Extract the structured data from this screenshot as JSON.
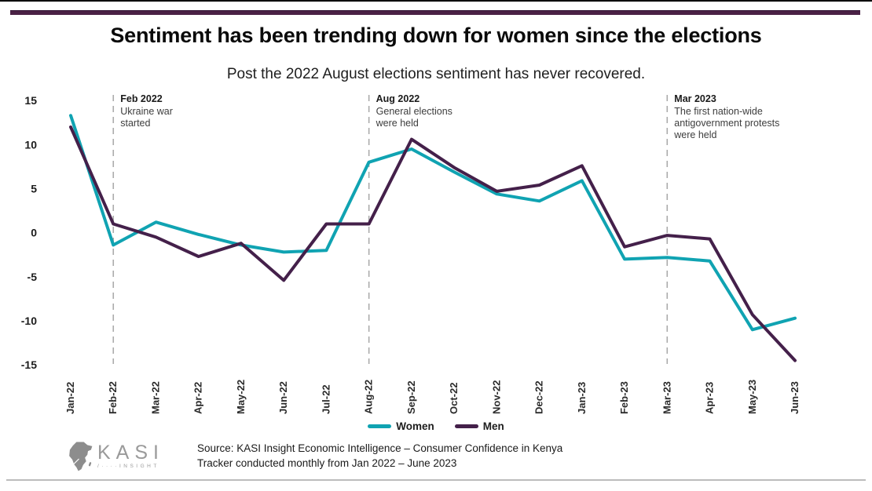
{
  "page": {
    "title": "Sentiment has been trending down for women since the elections",
    "subtitle": "Post the 2022 August elections sentiment has never recovered."
  },
  "chart_data": {
    "type": "line",
    "categories": [
      "Jan-22",
      "Feb-22",
      "Mar-22",
      "Apr-22",
      "May-22",
      "Jun-22",
      "Jul-22",
      "Aug-22",
      "Sep-22",
      "Oct-22",
      "Nov-22",
      "Dec-22",
      "Jan-23",
      "Feb-23",
      "Mar-23",
      "Apr-23",
      "May-23",
      "Jun-23"
    ],
    "series": [
      {
        "name": "Women",
        "color": "#10a3b2",
        "values": [
          13.3,
          -1.4,
          1.2,
          -0.2,
          -1.4,
          -2.2,
          -2.0,
          8.0,
          9.5,
          6.9,
          4.4,
          3.6,
          5.9,
          -3.0,
          -2.8,
          -3.2,
          -11.0,
          -9.7
        ]
      },
      {
        "name": "Men",
        "color": "#44204a",
        "values": [
          12.0,
          1.0,
          -0.5,
          -2.7,
          -1.2,
          -5.4,
          1.0,
          1.0,
          10.6,
          7.4,
          4.7,
          5.4,
          7.6,
          -1.6,
          -0.3,
          -0.7,
          -9.3,
          -14.5
        ]
      }
    ],
    "ylabel": "",
    "xlabel": "",
    "ylim": [
      -15,
      15
    ],
    "yticks": [
      15,
      10,
      5,
      0,
      -5,
      -10,
      -15
    ],
    "grid": false,
    "legend_position": "bottom-center",
    "annotations": [
      {
        "month": "Feb-22",
        "title": "Feb 2022",
        "text": "Ukraine war\nstarted"
      },
      {
        "month": "Aug-22",
        "title": "Aug 2022",
        "text": "General elections\nwere held"
      },
      {
        "month": "Mar-23",
        "title": "Mar 2023",
        "text": "The first nation-wide\nantigovernment protests\nwere held"
      }
    ]
  },
  "footer": {
    "logo_text": "KASI",
    "logo_subtext": "INSIGHT",
    "source_line1": "Source: KASI Insight Economic Intelligence – Consumer Confidence in Kenya",
    "source_line2": "Tracker conducted monthly from  Jan 2022 – June 2023"
  },
  "colors": {
    "accent_bar": "#4a2145",
    "women": "#10a3b2",
    "men": "#44204a",
    "dashed_marker": "#ababab",
    "bottom_rule": "#bcbcbc"
  }
}
